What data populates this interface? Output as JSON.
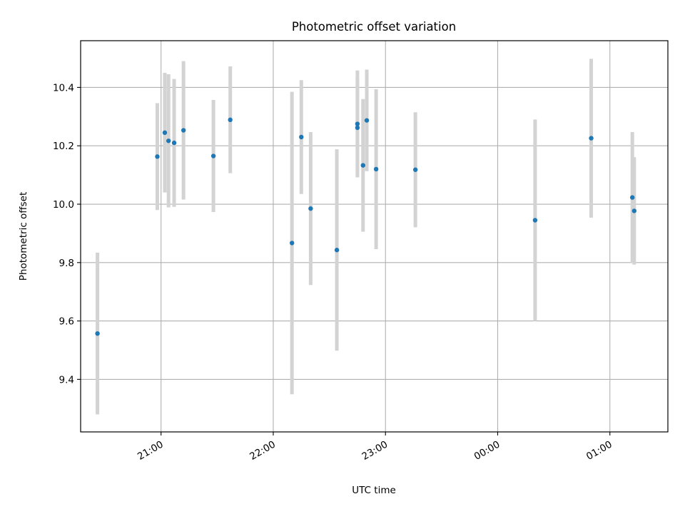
{
  "chart_data": {
    "type": "scatter",
    "title": "Photometric offset variation",
    "xlabel": "UTC time",
    "ylabel": "Photometric offset",
    "ylim": [
      9.22,
      10.56
    ],
    "xlim": [
      "20:17",
      "01:31"
    ],
    "grid": true,
    "point_color": "#1f77b4",
    "errorbar_color": "#d3d3d3",
    "x_ticks": [
      "21:00",
      "22:00",
      "23:00",
      "00:00",
      "01:00"
    ],
    "y_ticks": [
      "9.4",
      "9.6",
      "9.8",
      "10.0",
      "10.2",
      "10.4"
    ],
    "points": [
      {
        "x": "20:26",
        "y": 9.557,
        "err": 0.277
      },
      {
        "x": "20:58",
        "y": 10.163,
        "err": 0.183
      },
      {
        "x": "21:02",
        "y": 10.245,
        "err": 0.205
      },
      {
        "x": "21:04",
        "y": 10.217,
        "err": 0.228
      },
      {
        "x": "21:07",
        "y": 10.21,
        "err": 0.219
      },
      {
        "x": "21:12",
        "y": 10.253,
        "err": 0.237
      },
      {
        "x": "21:28",
        "y": 10.165,
        "err": 0.192
      },
      {
        "x": "21:37",
        "y": 10.289,
        "err": 0.183
      },
      {
        "x": "22:10",
        "y": 9.867,
        "err": 0.518
      },
      {
        "x": "22:15",
        "y": 10.23,
        "err": 0.195
      },
      {
        "x": "22:20",
        "y": 9.985,
        "err": 0.262
      },
      {
        "x": "22:34",
        "y": 9.843,
        "err": 0.345
      },
      {
        "x": "22:45",
        "y": 10.275,
        "err": 0.183
      },
      {
        "x": "22:45",
        "y": 10.262,
        "err": 0.17
      },
      {
        "x": "22:48",
        "y": 10.133,
        "err": 0.227
      },
      {
        "x": "22:50",
        "y": 10.287,
        "err": 0.174
      },
      {
        "x": "22:55",
        "y": 10.12,
        "err": 0.274
      },
      {
        "x": "23:16",
        "y": 10.118,
        "err": 0.197
      },
      {
        "x": "00:20",
        "y": 9.945,
        "err": 0.345
      },
      {
        "x": "00:50",
        "y": 10.226,
        "err": 0.272
      },
      {
        "x": "01:12",
        "y": 10.023,
        "err": 0.224
      },
      {
        "x": "01:13",
        "y": 9.977,
        "err": 0.184
      }
    ]
  }
}
